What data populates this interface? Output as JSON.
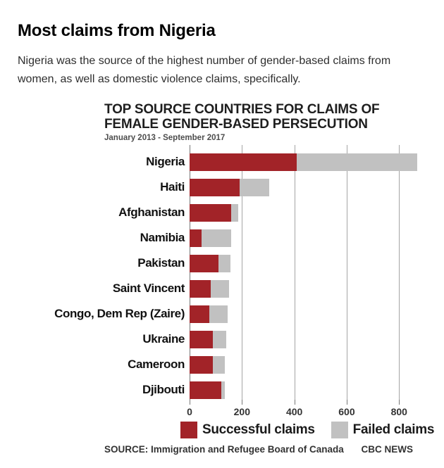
{
  "page": {
    "headline": "Most claims from Nigeria",
    "dek": "Nigeria was the source of the highest number of gender-based claims from women, as well as domestic violence claims, specifically."
  },
  "chart": {
    "title_line1": "TOP SOURCE COUNTRIES FOR CLAIMS OF",
    "title_line2": "FEMALE GENDER-BASED PERSECUTION",
    "subtitle": "January 2013 - September 2017",
    "source": "SOURCE: Immigration and Refugee Board of Canada",
    "credit": "CBC NEWS"
  },
  "chart_data": {
    "type": "bar",
    "orientation": "horizontal",
    "stacked": true,
    "title": "TOP SOURCE COUNTRIES FOR CLAIMS OF FEMALE GENDER-BASED PERSECUTION",
    "subtitle": "January 2013 - September 2017",
    "categories": [
      "Nigeria",
      "Haiti",
      "Afghanistan",
      "Namibia",
      "Pakistan",
      "Saint Vincent",
      "Congo, Dem Rep (Zaire)",
      "Ukraine",
      "Cameroon",
      "Djibouti"
    ],
    "series": [
      {
        "name": "Successful claims",
        "color": "#A22328",
        "values": [
          410,
          190,
          160,
          45,
          110,
          80,
          75,
          90,
          90,
          120
        ]
      },
      {
        "name": "Failed claims",
        "color": "#C1C1C1",
        "values": [
          460,
          115,
          25,
          115,
          45,
          70,
          70,
          50,
          45,
          15
        ]
      }
    ],
    "xlabel": "",
    "ylabel": "",
    "xlim": [
      0,
      950
    ],
    "xticks": [
      0,
      200,
      400,
      600,
      800
    ],
    "grid": true,
    "legend_position": "bottom"
  }
}
